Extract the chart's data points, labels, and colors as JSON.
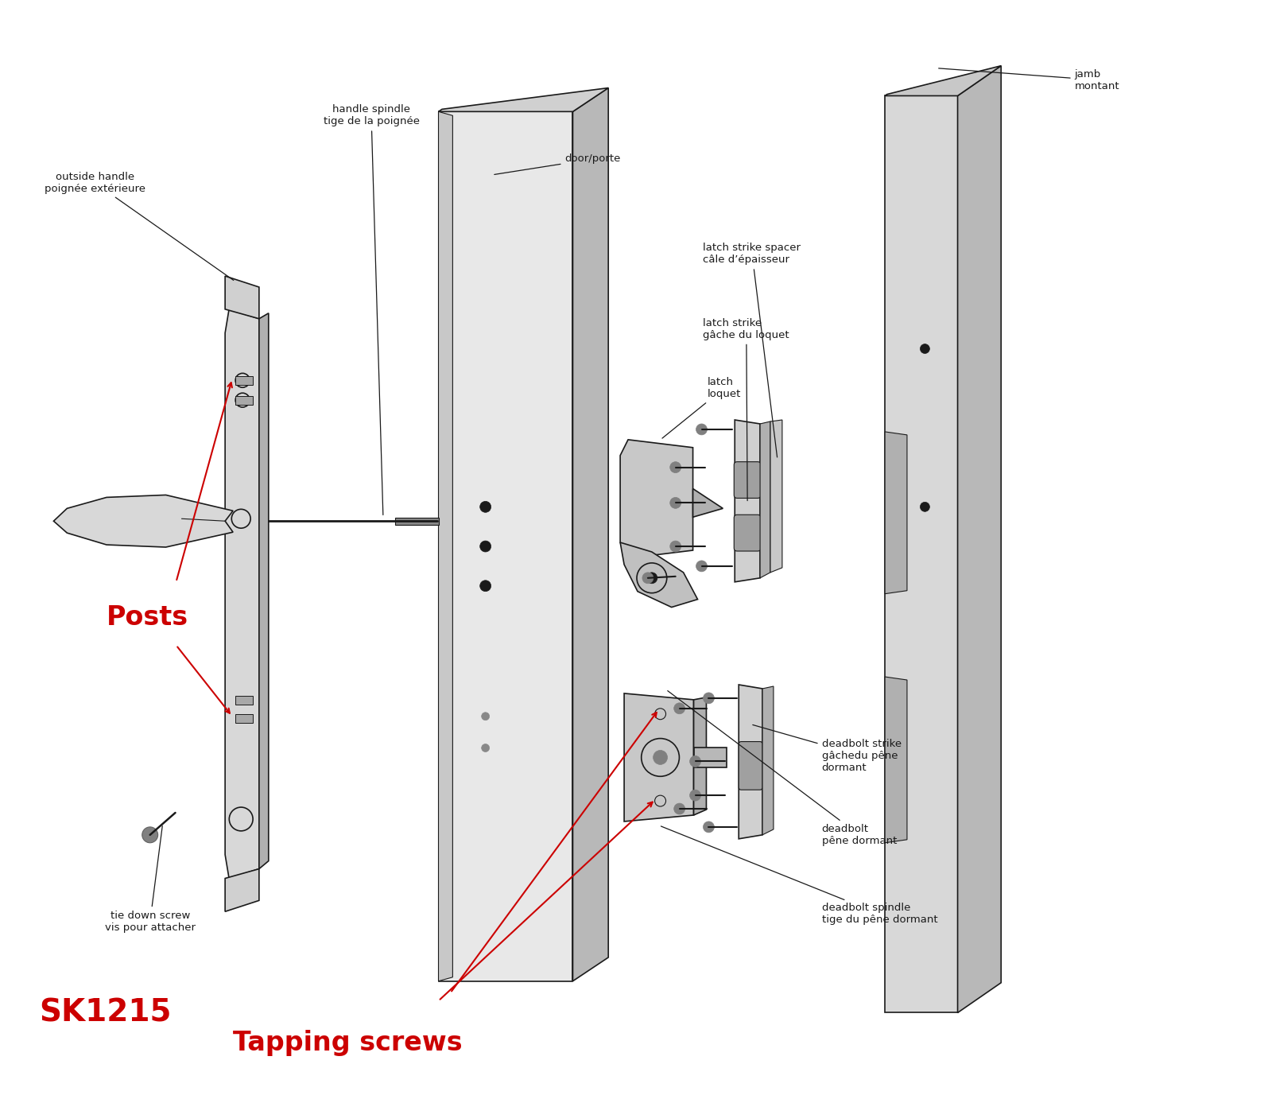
{
  "bg_color": "#ffffff",
  "line_color": "#1a1a1a",
  "red_color": "#cc0000",
  "figsize": [
    16.0,
    13.87
  ],
  "labels": {
    "outside_handle": "outside handle\npoignée extérieure",
    "handle_spindle": "handle spindle\ntige de la poignée",
    "door": "door/porte",
    "latch_strike_spacer": "latch strike spacer\ncâle d’épaisseur",
    "latch_strike": "latch strike\ngâche du loquet",
    "latch": "latch\nloquet",
    "jamb": "jamb\nmontant",
    "tie_down_screw": "tie down screw\nvis pour attacher",
    "posts": "Posts",
    "tapping_screws": "Tapping screws",
    "deadbolt_strike": "deadbolt strike\ngâchedu pêne\ndormant",
    "deadbolt": "deadbolt\npêne dormant",
    "deadbolt_spindle": "deadbolt spindle\ntige du pêne dormant",
    "sk1215": "SK1215"
  }
}
